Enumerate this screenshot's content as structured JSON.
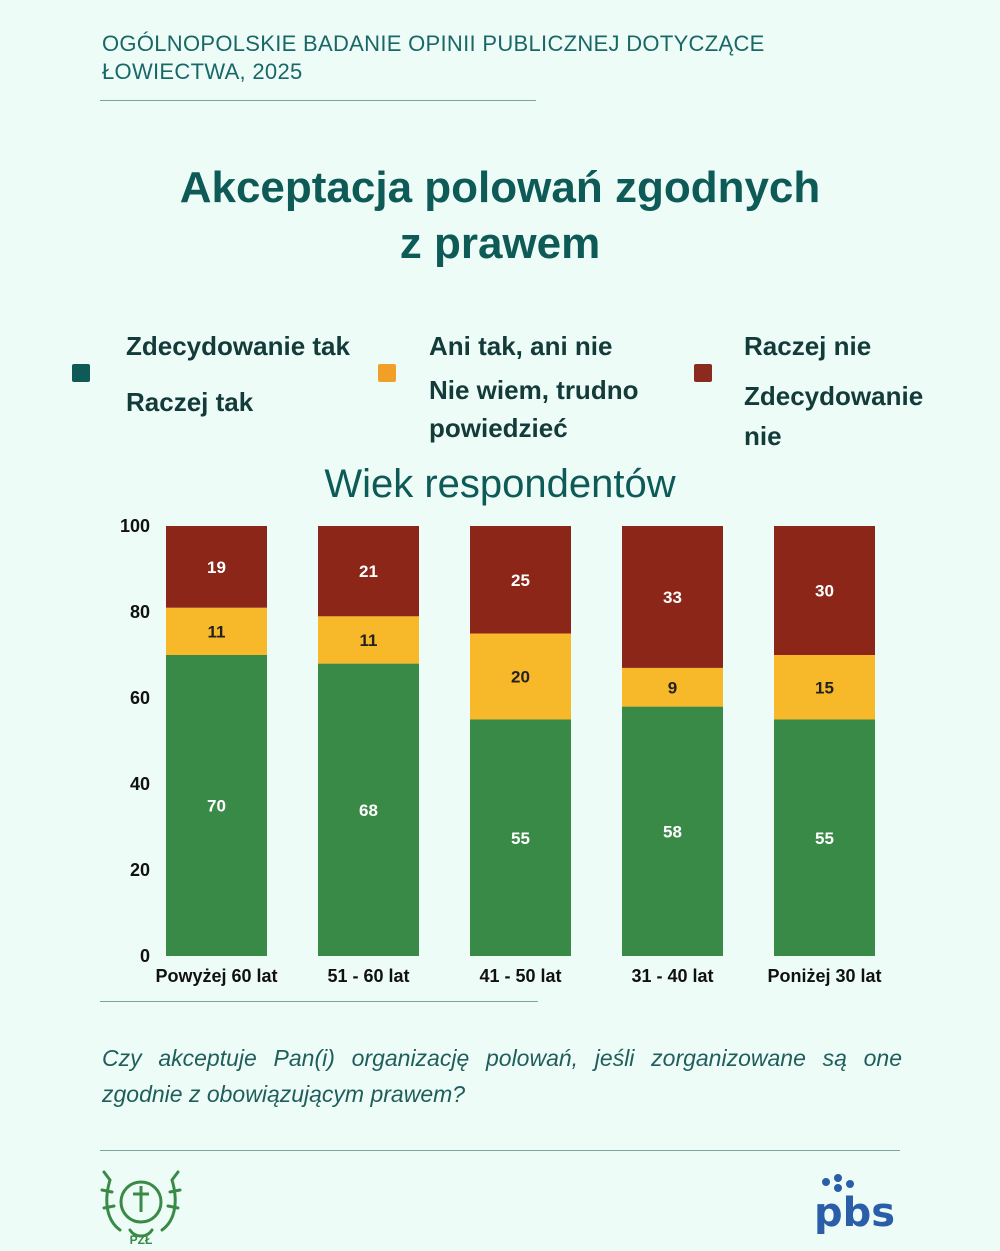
{
  "header": {
    "text": "OGÓLNOPOLSKIE BADANIE OPINII PUBLICZNEJ DOTYCZĄCE ŁOWIECTWA,  2025"
  },
  "title": {
    "line1": "Akceptacja polowań zgodnych",
    "line2": "z prawem"
  },
  "legend": {
    "groups": [
      {
        "color": "#0d5a57",
        "lines": [
          "Zdecydowanie tak",
          "Raczej tak"
        ]
      },
      {
        "color": "#f0a028",
        "lines": [
          "Ani tak, ani nie",
          "Nie wiem, trudno",
          "powiedzieć"
        ]
      },
      {
        "color": "#8b2a1e",
        "lines": [
          "Raczej nie",
          "Zdecydowanie",
          "nie"
        ]
      }
    ]
  },
  "chart_data": {
    "type": "bar",
    "stacked": true,
    "title": "Wiek respondentów",
    "categories": [
      "Powyżej 60 lat",
      "51 - 60 lat",
      "41 - 50 lat",
      "31 - 40 lat",
      "Poniżej 30 lat"
    ],
    "series": [
      {
        "color": "#3a8a47",
        "values": [
          70,
          68,
          55,
          58,
          55
        ]
      },
      {
        "color": "#f7b82a",
        "values": [
          11,
          11,
          20,
          9,
          15
        ]
      },
      {
        "color": "#8b2619",
        "values": [
          19,
          21,
          25,
          33,
          30
        ]
      }
    ],
    "ylim": [
      0,
      100
    ],
    "yticks": [
      0,
      20,
      40,
      60,
      80,
      100
    ],
    "grid": false
  },
  "question": "Czy akceptuje Pan(i) organizację polowań, jeśli zorganizowane są one zgodnie z obowiązującym prawem?",
  "logos": {
    "left_text": "PZŁ",
    "right_text": "pbs"
  }
}
